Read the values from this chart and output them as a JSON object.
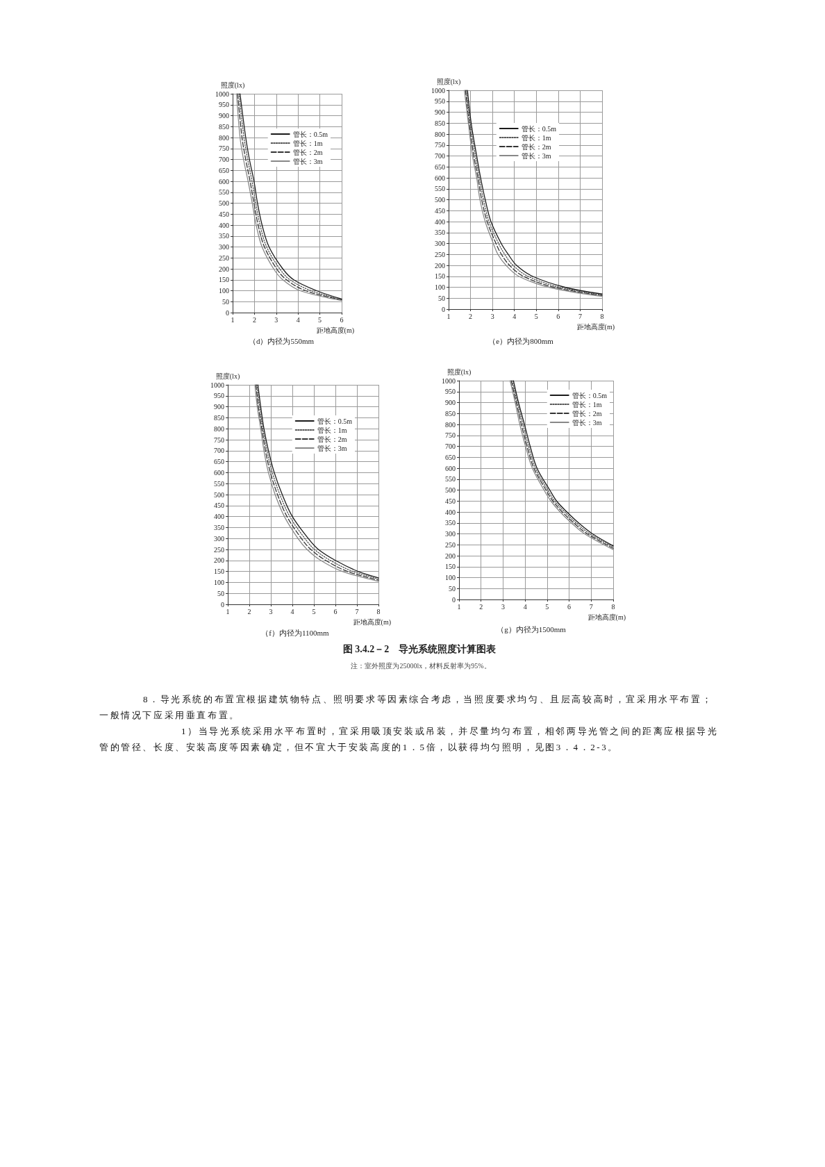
{
  "chart_data": [
    {
      "type": "line",
      "title": "（d）内径为550mm",
      "xlabel": "距地高度(m)",
      "ylabel": "照度(lx)",
      "xlim": [
        1,
        6
      ],
      "xticks": [
        1,
        2,
        3,
        4,
        5,
        6
      ],
      "ylim": [
        0,
        1000
      ],
      "yticks": [
        0,
        50,
        100,
        150,
        200,
        250,
        300,
        350,
        400,
        450,
        500,
        550,
        600,
        650,
        700,
        750,
        800,
        850,
        900,
        950,
        1000
      ],
      "grid": true,
      "legend": "top right",
      "series": [
        {
          "name": "管长：0.5m",
          "color": "#1a1a1a",
          "line_style": "solid",
          "x": [
            1.34,
            1.6,
            1.77,
            1.98,
            2.14,
            2.35,
            2.67,
            3.3,
            3.8,
            4.85,
            6
          ],
          "values": [
            1000,
            800,
            700,
            600,
            500,
            400,
            300,
            200,
            150,
            100,
            62
          ]
        },
        {
          "name": "管长：1m",
          "color": "#555555",
          "line_style": "dotted",
          "x": [
            1.29,
            1.52,
            1.69,
            1.89,
            2.06,
            2.26,
            2.56,
            3.16,
            3.63,
            4.6,
            6
          ],
          "values": [
            1000,
            800,
            700,
            600,
            500,
            400,
            300,
            200,
            150,
            100,
            60
          ]
        },
        {
          "name": "管长：2m",
          "color": "#333333",
          "line_style": "dashed",
          "x": [
            1.23,
            1.43,
            1.6,
            1.8,
            1.98,
            2.17,
            2.46,
            3.02,
            3.47,
            4.35,
            6
          ],
          "values": [
            1000,
            800,
            700,
            600,
            500,
            400,
            300,
            200,
            150,
            100,
            58
          ]
        },
        {
          "name": "管长：3m",
          "color": "#888888",
          "line_style": "solid",
          "x": [
            1.18,
            1.34,
            1.5,
            1.71,
            1.9,
            2.08,
            2.35,
            2.88,
            3.3,
            4.1,
            6
          ],
          "values": [
            1000,
            800,
            700,
            600,
            500,
            400,
            300,
            200,
            150,
            100,
            55
          ]
        }
      ]
    },
    {
      "type": "line",
      "title": "（e）内径为800mm",
      "xlabel": "距地高度(m)",
      "ylabel": "照度(lx)",
      "xlim": [
        1,
        8
      ],
      "xticks": [
        1,
        2,
        3,
        4,
        5,
        6,
        7,
        8
      ],
      "ylim": [
        0,
        1000
      ],
      "yticks": [
        0,
        50,
        100,
        150,
        200,
        250,
        300,
        350,
        400,
        450,
        500,
        550,
        600,
        650,
        700,
        750,
        800,
        850,
        900,
        950,
        1000
      ],
      "grid": true,
      "legend": "top right",
      "series": [
        {
          "name": "管长：0.5m",
          "color": "#1a1a1a",
          "line_style": "solid",
          "x": [
            1.86,
            2.03,
            2.28,
            2.46,
            2.67,
            2.93,
            3.4,
            3.72,
            4.1,
            4.83,
            6.3,
            8
          ],
          "values": [
            1000,
            850,
            700,
            600,
            500,
            400,
            300,
            250,
            200,
            150,
            100,
            69
          ]
        },
        {
          "name": "管长：1m",
          "color": "#555555",
          "line_style": "dotted",
          "x": [
            1.81,
            1.99,
            2.22,
            2.4,
            2.59,
            2.84,
            3.28,
            3.56,
            3.94,
            4.62,
            6.06,
            8
          ],
          "values": [
            1000,
            850,
            700,
            600,
            500,
            400,
            300,
            250,
            200,
            150,
            100,
            65
          ]
        },
        {
          "name": "管长：2m",
          "color": "#333333",
          "line_style": "dashed",
          "x": [
            1.77,
            1.94,
            2.15,
            2.34,
            2.51,
            2.76,
            3.16,
            3.41,
            3.78,
            4.41,
            5.81,
            8
          ],
          "values": [
            1000,
            850,
            700,
            600,
            500,
            400,
            300,
            250,
            200,
            150,
            100,
            62
          ]
        },
        {
          "name": "管长：3m",
          "color": "#888888",
          "line_style": "solid",
          "x": [
            1.72,
            1.9,
            2.09,
            2.28,
            2.43,
            2.67,
            3.04,
            3.25,
            3.62,
            4.2,
            5.57,
            8
          ],
          "values": [
            1000,
            850,
            700,
            600,
            500,
            400,
            300,
            250,
            200,
            150,
            100,
            58
          ]
        }
      ]
    },
    {
      "type": "line",
      "title": "（f）内径为1100mm",
      "xlabel": "距地高度(m)",
      "ylabel": "照度(lx)",
      "xlim": [
        1,
        8
      ],
      "xticks": [
        1,
        2,
        3,
        4,
        5,
        6,
        7,
        8
      ],
      "ylim": [
        0,
        1000
      ],
      "yticks": [
        0,
        50,
        100,
        150,
        200,
        250,
        300,
        350,
        400,
        450,
        500,
        550,
        600,
        650,
        700,
        750,
        800,
        850,
        900,
        950,
        1000
      ],
      "grid": true,
      "legend": "top right",
      "series": [
        {
          "name": "管长：0.5m",
          "color": "#1a1a1a",
          "line_style": "solid",
          "x": [
            2.4,
            2.53,
            2.68,
            2.89,
            3.16,
            3.53,
            4.0,
            4.74,
            5.21,
            6.0,
            7.05,
            8
          ],
          "values": [
            1000,
            900,
            800,
            700,
            600,
            500,
            400,
            300,
            250,
            200,
            150,
            121
          ]
        },
        {
          "name": "管长：1m",
          "color": "#555555",
          "line_style": "dotted",
          "x": [
            2.35,
            2.48,
            2.63,
            2.82,
            3.07,
            3.42,
            3.88,
            4.58,
            5.03,
            5.77,
            6.81,
            8
          ],
          "values": [
            1000,
            900,
            800,
            700,
            600,
            500,
            400,
            300,
            250,
            200,
            150,
            116
          ]
        },
        {
          "name": "管长：2m",
          "color": "#333333",
          "line_style": "dashed",
          "x": [
            2.31,
            2.42,
            2.58,
            2.75,
            2.98,
            3.31,
            3.75,
            4.42,
            4.86,
            5.55,
            6.56,
            8
          ],
          "values": [
            1000,
            900,
            800,
            700,
            600,
            500,
            400,
            300,
            250,
            200,
            150,
            110
          ]
        },
        {
          "name": "管长：3m",
          "color": "#888888",
          "line_style": "solid",
          "x": [
            2.26,
            2.37,
            2.53,
            2.68,
            2.89,
            3.2,
            3.63,
            4.26,
            4.68,
            5.32,
            6.32,
            8
          ],
          "values": [
            1000,
            900,
            800,
            700,
            600,
            500,
            400,
            300,
            250,
            200,
            150,
            105
          ]
        }
      ]
    },
    {
      "type": "line",
      "title": "（g）内径为1500mm",
      "xlabel": "距地高度(m)",
      "ylabel": "照度(lx)",
      "xlim": [
        1,
        8
      ],
      "xticks": [
        1,
        2,
        3,
        4,
        5,
        6,
        7,
        8
      ],
      "ylim": [
        0,
        1000
      ],
      "yticks": [
        0,
        50,
        100,
        150,
        200,
        250,
        300,
        350,
        400,
        450,
        500,
        550,
        600,
        650,
        700,
        750,
        800,
        850,
        900,
        950,
        1000
      ],
      "grid": true,
      "legend": "top right",
      "series": [
        {
          "name": "管长：0.5m",
          "color": "#1a1a1a",
          "line_style": "solid",
          "x": [
            3.47,
            3.7,
            3.97,
            4.23,
            4.54,
            5.12,
            5.43,
            5.9,
            6.43,
            7.06,
            8
          ],
          "values": [
            1000,
            900,
            800,
            700,
            600,
            500,
            450,
            400,
            350,
            300,
            245
          ]
        },
        {
          "name": "管长：1m",
          "color": "#555555",
          "line_style": "dotted",
          "x": [
            3.42,
            3.65,
            3.9,
            4.16,
            4.47,
            5.03,
            5.34,
            5.8,
            6.32,
            6.94,
            8
          ],
          "values": [
            1000,
            900,
            800,
            700,
            600,
            500,
            450,
            400,
            350,
            300,
            240
          ]
        },
        {
          "name": "管长：2m",
          "color": "#333333",
          "line_style": "dashed",
          "x": [
            3.37,
            3.6,
            3.83,
            4.09,
            4.4,
            4.95,
            5.26,
            5.69,
            6.21,
            6.82,
            8
          ],
          "values": [
            1000,
            900,
            800,
            700,
            600,
            500,
            450,
            400,
            350,
            300,
            234
          ]
        },
        {
          "name": "管长：3m",
          "color": "#888888",
          "line_style": "solid",
          "x": [
            3.32,
            3.55,
            3.76,
            4.02,
            4.33,
            4.86,
            5.17,
            5.59,
            6.1,
            6.7,
            8
          ],
          "values": [
            1000,
            900,
            800,
            700,
            600,
            500,
            450,
            400,
            350,
            300,
            228
          ]
        }
      ]
    },
    {
      "type": "other",
      "title": "图 3.4.2－2　导光系统照度计算图表",
      "subtitle": "注：室外照度为25000lx，材料反射率为95%。",
      "annotations": [
        "8．导光系统的布置宜根据建筑物特点、照明要求等因素综合考虑，当照度要求均匀、且层高较高时，宜采用水平布置；一般情况下应采用垂直布置。",
        "1）当导光系统采用水平布置时，宜采用吸顶安装或吊装，并尽量均匀布置，相邻两导光管之间的距离应根据导光管的管径、长度、安装高度等因素确定，但不宜大于安装高度的1．5倍，以获得均匀照明，见图3．4．2-3。"
      ]
    }
  ]
}
